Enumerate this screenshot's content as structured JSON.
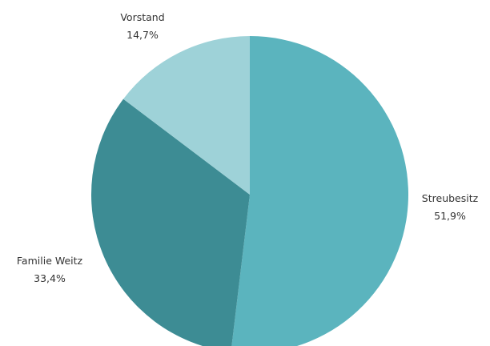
{
  "chart_data": {
    "type": "pie",
    "title": "",
    "start_angle_deg": 0,
    "direction": "clockwise",
    "slices": [
      {
        "label": "Streubesitz",
        "value": 51.9,
        "value_label": "51,9%",
        "color": "#5bb4be"
      },
      {
        "label": "Familie Weitz",
        "value": 33.4,
        "value_label": "33,4%",
        "color": "#3d8c94"
      },
      {
        "label": "Vorstand",
        "value": 14.7,
        "value_label": "14,7%",
        "color": "#9ed2d8"
      }
    ]
  }
}
